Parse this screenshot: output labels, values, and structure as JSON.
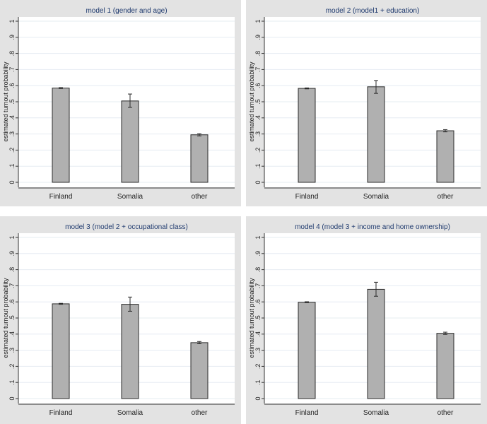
{
  "colors": {
    "panel_background": "#e3e3e3",
    "plot_background": "#ffffff",
    "bar_fill": "#b0b0b0",
    "bar_edge": "#2b2b2b",
    "title_color": "#1f3a6e",
    "grid_color": "#e6ecf2"
  },
  "chart_data": [
    {
      "type": "bar",
      "title": "model 1 (gender and age)",
      "ylabel": "estimated turnout probability",
      "xlabel": "",
      "ylim": [
        0,
        1
      ],
      "yticks": [
        "0",
        ".1",
        ".2",
        ".3",
        ".4",
        ".5",
        ".6",
        ".7",
        ".8",
        ".9",
        "1"
      ],
      "categories": [
        "Finland",
        "Somalia",
        "other"
      ],
      "values": [
        0.585,
        0.505,
        0.295
      ],
      "ci_low": [
        0.582,
        0.465,
        0.288
      ],
      "ci_high": [
        0.588,
        0.548,
        0.302
      ],
      "grid": true
    },
    {
      "type": "bar",
      "title": "model 2 (model1 + education)",
      "ylabel": "estimated turnout probability",
      "xlabel": "",
      "ylim": [
        0,
        1
      ],
      "yticks": [
        "0",
        ".1",
        ".2",
        ".3",
        ".4",
        ".5",
        ".6",
        ".7",
        ".8",
        ".9",
        "1"
      ],
      "categories": [
        "Finland",
        "Somalia",
        "other"
      ],
      "values": [
        0.583,
        0.593,
        0.32
      ],
      "ci_low": [
        0.58,
        0.552,
        0.313
      ],
      "ci_high": [
        0.586,
        0.632,
        0.327
      ],
      "grid": true
    },
    {
      "type": "bar",
      "title": "model 3 (model 2 + occupational class)",
      "ylabel": "estimated turnout probability",
      "xlabel": "",
      "ylim": [
        0,
        1
      ],
      "yticks": [
        "0",
        ".1",
        ".2",
        ".3",
        ".4",
        ".5",
        ".6",
        ".7",
        ".8",
        ".9",
        "1"
      ],
      "categories": [
        "Finland",
        "Somalia",
        "other"
      ],
      "values": [
        0.588,
        0.585,
        0.347
      ],
      "ci_low": [
        0.585,
        0.542,
        0.34
      ],
      "ci_high": [
        0.591,
        0.63,
        0.354
      ],
      "grid": true
    },
    {
      "type": "bar",
      "title": "model 4 (model 3 + income and home ownership)",
      "ylabel": "estimated turnout probability",
      "xlabel": "",
      "ylim": [
        0,
        1
      ],
      "yticks": [
        "0",
        ".1",
        ".2",
        ".3",
        ".4",
        ".5",
        ".6",
        ".7",
        ".8",
        ".9",
        "1"
      ],
      "categories": [
        "Finland",
        "Somalia",
        "other"
      ],
      "values": [
        0.598,
        0.678,
        0.405
      ],
      "ci_low": [
        0.595,
        0.635,
        0.398
      ],
      "ci_high": [
        0.601,
        0.722,
        0.412
      ],
      "grid": true
    }
  ]
}
